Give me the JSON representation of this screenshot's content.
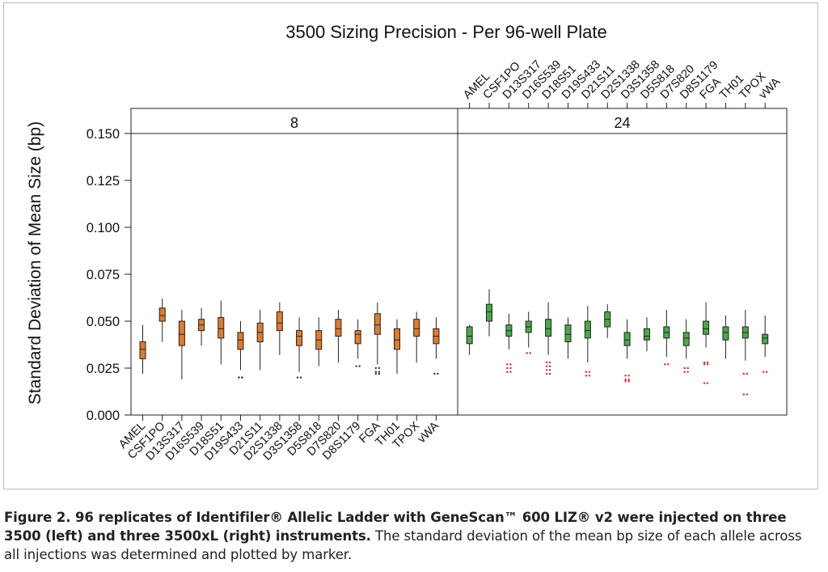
{
  "chart_data": {
    "type": "boxplot",
    "title": "3500 Sizing Precision - Per 96-well Plate",
    "ylabel": "Standard Deviation of Mean Size (bp)",
    "xlabel": "",
    "ylim": [
      0.0,
      0.15
    ],
    "yticks": [
      "0.000",
      "0.025",
      "0.050",
      "0.075",
      "0.100",
      "0.125",
      "0.150"
    ],
    "grid": false,
    "categories": [
      "AMEL",
      "CSF1PO",
      "D13S317",
      "D16S539",
      "D18S51",
      "D19S433",
      "D21S11",
      "D2S1338",
      "D3S1358",
      "D5S818",
      "D7S820",
      "D8S1179",
      "FGA",
      "TH01",
      "TPOX",
      "vWA"
    ],
    "panels": [
      {
        "label": "8",
        "color": "#e07b2e",
        "outlier_color": "#333333",
        "boxes": [
          {
            "min": 0.022,
            "q1": 0.03,
            "median": 0.035,
            "q3": 0.039,
            "max": 0.048,
            "outliers": []
          },
          {
            "min": 0.039,
            "q1": 0.05,
            "median": 0.053,
            "q3": 0.057,
            "max": 0.062,
            "outliers": []
          },
          {
            "min": 0.019,
            "q1": 0.037,
            "median": 0.043,
            "q3": 0.05,
            "max": 0.056,
            "outliers": []
          },
          {
            "min": 0.037,
            "q1": 0.045,
            "median": 0.048,
            "q3": 0.051,
            "max": 0.057,
            "outliers": []
          },
          {
            "min": 0.027,
            "q1": 0.041,
            "median": 0.046,
            "q3": 0.052,
            "max": 0.061,
            "outliers": []
          },
          {
            "min": 0.024,
            "q1": 0.035,
            "median": 0.04,
            "q3": 0.044,
            "max": 0.05,
            "outliers": [
              0.02,
              0.02
            ]
          },
          {
            "min": 0.024,
            "q1": 0.039,
            "median": 0.044,
            "q3": 0.049,
            "max": 0.056,
            "outliers": []
          },
          {
            "min": 0.032,
            "q1": 0.045,
            "median": 0.049,
            "q3": 0.055,
            "max": 0.06,
            "outliers": []
          },
          {
            "min": 0.023,
            "q1": 0.037,
            "median": 0.042,
            "q3": 0.045,
            "max": 0.052,
            "outliers": [
              0.02
            ]
          },
          {
            "min": 0.026,
            "q1": 0.035,
            "median": 0.04,
            "q3": 0.045,
            "max": 0.052,
            "outliers": []
          },
          {
            "min": 0.028,
            "q1": 0.042,
            "median": 0.046,
            "q3": 0.051,
            "max": 0.056,
            "outliers": []
          },
          {
            "min": 0.03,
            "q1": 0.038,
            "median": 0.043,
            "q3": 0.045,
            "max": 0.051,
            "outliers": [
              0.026
            ]
          },
          {
            "min": 0.027,
            "q1": 0.043,
            "median": 0.048,
            "q3": 0.054,
            "max": 0.06,
            "outliers": [
              0.025,
              0.023,
              0.022
            ]
          },
          {
            "min": 0.022,
            "q1": 0.035,
            "median": 0.04,
            "q3": 0.046,
            "max": 0.051,
            "outliers": []
          },
          {
            "min": 0.028,
            "q1": 0.042,
            "median": 0.046,
            "q3": 0.051,
            "max": 0.055,
            "outliers": []
          },
          {
            "min": 0.03,
            "q1": 0.038,
            "median": 0.042,
            "q3": 0.046,
            "max": 0.052,
            "outliers": [
              0.022
            ]
          }
        ]
      },
      {
        "label": "24",
        "color": "#4aa94a",
        "outlier_color": "#e02020",
        "boxes": [
          {
            "min": 0.032,
            "q1": 0.038,
            "median": 0.042,
            "q3": 0.047,
            "max": 0.048,
            "outliers": []
          },
          {
            "min": 0.042,
            "q1": 0.05,
            "median": 0.055,
            "q3": 0.059,
            "max": 0.067,
            "outliers": []
          },
          {
            "min": 0.035,
            "q1": 0.042,
            "median": 0.045,
            "q3": 0.048,
            "max": 0.054,
            "outliers": [
              0.027,
              0.025,
              0.023
            ]
          },
          {
            "min": 0.036,
            "q1": 0.044,
            "median": 0.047,
            "q3": 0.05,
            "max": 0.055,
            "outliers": [
              0.033
            ]
          },
          {
            "min": 0.032,
            "q1": 0.042,
            "median": 0.046,
            "q3": 0.051,
            "max": 0.06,
            "outliers": [
              0.028,
              0.026,
              0.024,
              0.022
            ]
          },
          {
            "min": 0.03,
            "q1": 0.039,
            "median": 0.043,
            "q3": 0.048,
            "max": 0.052,
            "outliers": []
          },
          {
            "min": 0.028,
            "q1": 0.041,
            "median": 0.045,
            "q3": 0.05,
            "max": 0.058,
            "outliers": [
              0.023,
              0.021
            ]
          },
          {
            "min": 0.041,
            "q1": 0.047,
            "median": 0.051,
            "q3": 0.055,
            "max": 0.059,
            "outliers": []
          },
          {
            "min": 0.03,
            "q1": 0.037,
            "median": 0.04,
            "q3": 0.044,
            "max": 0.051,
            "outliers": [
              0.021,
              0.019,
              0.018
            ]
          },
          {
            "min": 0.034,
            "q1": 0.04,
            "median": 0.042,
            "q3": 0.046,
            "max": 0.052,
            "outliers": []
          },
          {
            "min": 0.031,
            "q1": 0.041,
            "median": 0.044,
            "q3": 0.047,
            "max": 0.056,
            "outliers": [
              0.027
            ]
          },
          {
            "min": 0.03,
            "q1": 0.037,
            "median": 0.041,
            "q3": 0.044,
            "max": 0.051,
            "outliers": [
              0.025,
              0.023
            ]
          },
          {
            "min": 0.036,
            "q1": 0.043,
            "median": 0.046,
            "q3": 0.05,
            "max": 0.06,
            "outliers": [
              0.028,
              0.027,
              0.017
            ]
          },
          {
            "min": 0.03,
            "q1": 0.04,
            "median": 0.044,
            "q3": 0.047,
            "max": 0.053,
            "outliers": []
          },
          {
            "min": 0.029,
            "q1": 0.041,
            "median": 0.044,
            "q3": 0.047,
            "max": 0.056,
            "outliers": [
              0.022,
              0.011
            ]
          },
          {
            "min": 0.031,
            "q1": 0.038,
            "median": 0.041,
            "q3": 0.043,
            "max": 0.053,
            "outliers": [
              0.023
            ]
          }
        ]
      }
    ]
  },
  "caption": {
    "bold": "Figure 2. 96 replicates of Identifiler® Allelic Ladder with GeneScan™ 600 LIZ® v2 were injected on three 3500 (left) and three 3500xL (right) instruments.",
    "normal": "The standard deviation of the mean bp size of each allele across all injections was determined and plotted by marker."
  }
}
